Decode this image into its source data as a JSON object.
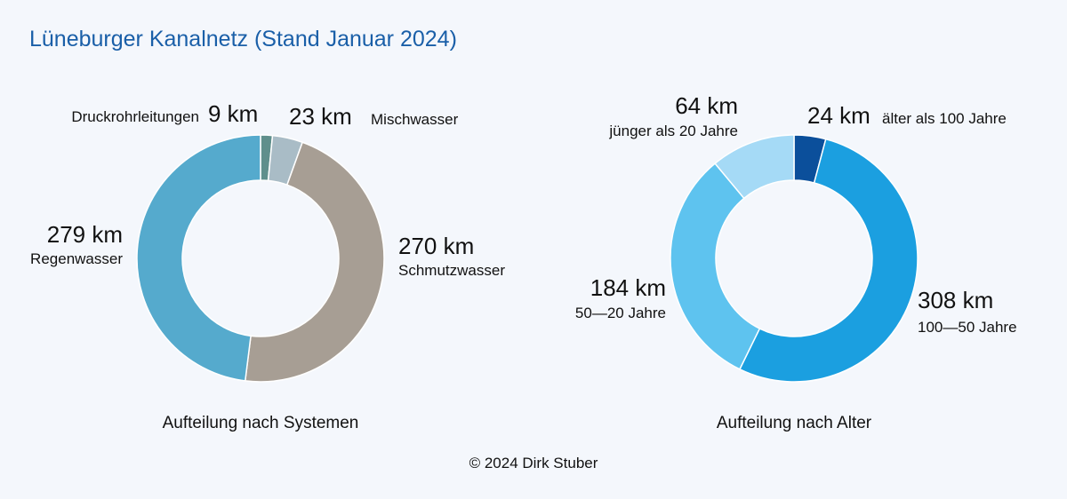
{
  "title": "Lüneburger Kanalnetz (Stand Januar 2024)",
  "copyright": "© 2024 Dirk Stuber",
  "chart_data": [
    {
      "type": "pie",
      "variant": "donut",
      "caption": "Aufteilung nach Systemen",
      "unit": "km",
      "slices": [
        {
          "label": "Druckrohrleitungen",
          "value": 9,
          "value_label": "9 km",
          "color": "#5f8f8c"
        },
        {
          "label": "Mischwasser",
          "value": 23,
          "value_label": "23 km",
          "color": "#a9bcc6"
        },
        {
          "label": "Schmutzwasser",
          "value": 270,
          "value_label": "270 km",
          "color": "#a79e94"
        },
        {
          "label": "Regenwasser",
          "value": 279,
          "value_label": "279 km",
          "color": "#55aacd"
        }
      ]
    },
    {
      "type": "pie",
      "variant": "donut",
      "caption": "Aufteilung nach Alter",
      "unit": "km",
      "slices": [
        {
          "label": "älter als 100 Jahre",
          "value": 24,
          "value_label": "24 km",
          "color": "#0b4f9b"
        },
        {
          "label": "100—50 Jahre",
          "value": 308,
          "value_label": "308 km",
          "color": "#1b9fe0"
        },
        {
          "label": "50—20 Jahre",
          "value": 184,
          "value_label": "184 km",
          "color": "#5ec3ef"
        },
        {
          "label": "jünger als 20 Jahre",
          "value": 64,
          "value_label": "64 km",
          "color": "#a5daf6"
        }
      ]
    }
  ]
}
